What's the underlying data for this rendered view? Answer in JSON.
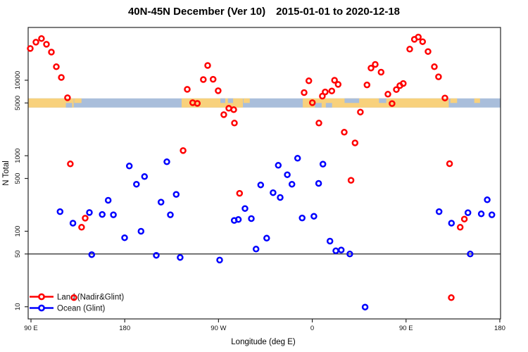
{
  "header": {
    "title_main": "40N-45N December (Ver 10)",
    "title_dates": "2015-01-01 to 2020-12-18"
  },
  "chart_data": {
    "type": "scatter",
    "title": "40N-45N December (Ver 10)   2015-01-01 to 2020-12-18",
    "xlabel": "Longitude (deg E)",
    "ylabel": "N Total",
    "x_axis": {
      "min": 87.3,
      "max": 540.7,
      "ticks": [
        {
          "value": 90,
          "label": "90 E"
        },
        {
          "value": 180,
          "label": "180"
        },
        {
          "value": 270,
          "label": "90 W"
        },
        {
          "value": 360,
          "label": "0"
        },
        {
          "value": 450,
          "label": "90 E"
        },
        {
          "value": 540,
          "label": "180"
        }
      ]
    },
    "y_axis": {
      "scale": "log",
      "min": 6.9,
      "max": 50000,
      "ticks": [
        {
          "value": 10,
          "label": "10"
        },
        {
          "value": 50,
          "label": "50"
        },
        {
          "value": 100,
          "label": "100"
        },
        {
          "value": 500,
          "label": "500"
        },
        {
          "value": 1000,
          "label": "1000"
        },
        {
          "value": 5000,
          "label": "5000"
        },
        {
          "value": 10000,
          "label": "10000"
        }
      ]
    },
    "reference_line": {
      "y": 50
    },
    "axis_color": "#262626",
    "map_band": {
      "at_value": 5000,
      "land_color": "#F8D17C",
      "ocean_color": "#A9BEDB",
      "base": "ocean",
      "layers": [
        {
          "from": 87.3,
          "to": 131,
          "surface": "land",
          "pos": "full"
        },
        {
          "from": 123.5,
          "to": 129.5,
          "surface": "ocean",
          "pos": "bottom"
        },
        {
          "from": 131.5,
          "to": 138.5,
          "surface": "land",
          "pos": "top"
        },
        {
          "from": 234.6,
          "to": 293.4,
          "surface": "land",
          "pos": "full"
        },
        {
          "from": 271.8,
          "to": 276.5,
          "surface": "ocean",
          "pos": "top"
        },
        {
          "from": 279,
          "to": 284,
          "surface": "ocean",
          "pos": "top"
        },
        {
          "from": 294,
          "to": 300,
          "surface": "land",
          "pos": "top"
        },
        {
          "from": 350.9,
          "to": 491,
          "surface": "land",
          "pos": "full"
        },
        {
          "from": 362.5,
          "to": 369,
          "surface": "ocean",
          "pos": "bottom"
        },
        {
          "from": 373,
          "to": 379,
          "surface": "ocean",
          "pos": "bottom"
        },
        {
          "from": 391,
          "to": 405,
          "surface": "ocean",
          "pos": "top"
        },
        {
          "from": 424,
          "to": 431,
          "surface": "ocean",
          "pos": "top"
        },
        {
          "from": 492.5,
          "to": 499,
          "surface": "land",
          "pos": "top"
        },
        {
          "from": 515.5,
          "to": 521,
          "surface": "land",
          "pos": "top"
        }
      ]
    },
    "legend": {
      "items": [
        {
          "label": "Land (Nadir&Glint)",
          "color": "#FF0000"
        },
        {
          "label": "Ocean (Glint)",
          "color": "#0000FF"
        }
      ]
    },
    "series": [
      {
        "name": "Land (Nadir&Glint)",
        "color": "#FF0000",
        "points": [
          [
            89.3,
            26300
          ],
          [
            94.7,
            31900
          ],
          [
            100.1,
            35600
          ],
          [
            104.9,
            29900
          ],
          [
            109.6,
            23600
          ],
          [
            114.3,
            15100
          ],
          [
            119.1,
            10900
          ],
          [
            125.1,
            5860
          ],
          [
            127.8,
            780
          ],
          [
            131.2,
            13.2
          ],
          [
            138.6,
            113
          ],
          [
            142,
            149
          ],
          [
            236,
            1170
          ],
          [
            240,
            7580
          ],
          [
            245.2,
            5040
          ],
          [
            249.7,
            4930
          ],
          [
            255.4,
            10200
          ],
          [
            259.6,
            15700
          ],
          [
            264.8,
            10300
          ],
          [
            269.7,
            7260
          ],
          [
            275.1,
            3500
          ],
          [
            279.9,
            4250
          ],
          [
            284.6,
            4070
          ],
          [
            285.3,
            2710
          ],
          [
            290.2,
            318
          ],
          [
            352.2,
            6860
          ],
          [
            356.7,
            9820
          ],
          [
            360.1,
            5040
          ],
          [
            366.4,
            2710
          ],
          [
            369.7,
            6170
          ],
          [
            372.4,
            7000
          ],
          [
            378.7,
            7210
          ],
          [
            381.4,
            10000
          ],
          [
            384.8,
            8810
          ],
          [
            390.7,
            2050
          ],
          [
            397.2,
            473
          ],
          [
            401,
            1480
          ],
          [
            406.2,
            3790
          ],
          [
            412.5,
            8670
          ],
          [
            416.4,
            14500
          ],
          [
            420.4,
            16200
          ],
          [
            426,
            12800
          ],
          [
            432.6,
            6530
          ],
          [
            436.6,
            4910
          ],
          [
            440.7,
            7530
          ],
          [
            444.1,
            8490
          ],
          [
            447.3,
            9060
          ],
          [
            453.5,
            25800
          ],
          [
            458,
            34800
          ],
          [
            461.8,
            37300
          ],
          [
            465.9,
            32400
          ],
          [
            471.1,
            24000
          ],
          [
            477.2,
            15100
          ],
          [
            481.2,
            11100
          ],
          [
            487.3,
            5820
          ],
          [
            491.8,
            785
          ],
          [
            493.4,
            13.2
          ],
          [
            502,
            113
          ],
          [
            506,
            145
          ]
        ]
      },
      {
        "name": "Ocean (Glint)",
        "color": "#0000FF",
        "points": [
          [
            117.9,
            182
          ],
          [
            130.3,
            128
          ],
          [
            146.1,
            177
          ],
          [
            148.3,
            49
          ],
          [
            158.4,
            167
          ],
          [
            164.1,
            257
          ],
          [
            169.1,
            165
          ],
          [
            179.9,
            82
          ],
          [
            184.4,
            731
          ],
          [
            191.2,
            419
          ],
          [
            195.6,
            100
          ],
          [
            199,
            530
          ],
          [
            210.3,
            48
          ],
          [
            214.8,
            243
          ],
          [
            220.4,
            832
          ],
          [
            223.8,
            165
          ],
          [
            229.4,
            308
          ],
          [
            233.2,
            45
          ],
          [
            271.1,
            41.5
          ],
          [
            285.1,
            139
          ],
          [
            289.1,
            143
          ],
          [
            295.4,
            200
          ],
          [
            301.5,
            147
          ],
          [
            306,
            58
          ],
          [
            310.5,
            410
          ],
          [
            316.2,
            81
          ],
          [
            322.4,
            324
          ],
          [
            327.4,
            747
          ],
          [
            329.2,
            280
          ],
          [
            336,
            560
          ],
          [
            340.5,
            419
          ],
          [
            345.9,
            925
          ],
          [
            350.3,
            150
          ],
          [
            361.6,
            158
          ],
          [
            366.1,
            430
          ],
          [
            370.2,
            774
          ],
          [
            377,
            74
          ],
          [
            382.6,
            55
          ],
          [
            387.8,
            56.5
          ],
          [
            396,
            50
          ],
          [
            410.7,
            9.9
          ],
          [
            481.7,
            182
          ],
          [
            493.6,
            128
          ],
          [
            509.4,
            176
          ],
          [
            511.6,
            50
          ],
          [
            522.2,
            170
          ],
          [
            527.9,
            261
          ],
          [
            532.4,
            165
          ]
        ]
      }
    ]
  }
}
